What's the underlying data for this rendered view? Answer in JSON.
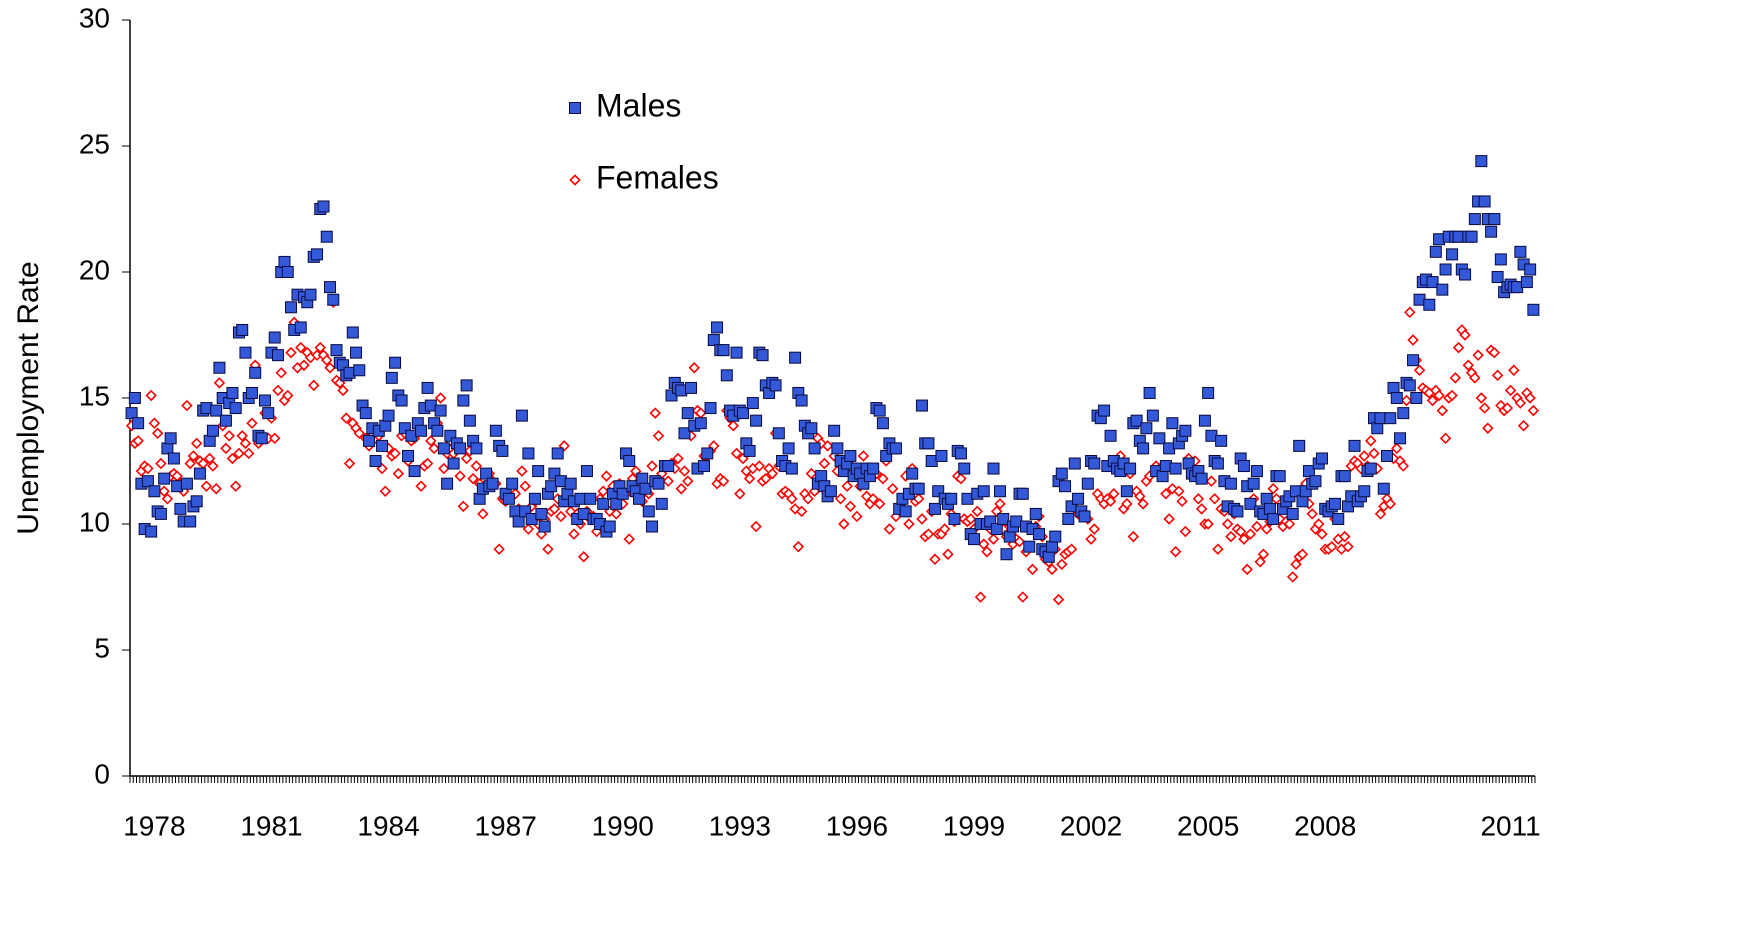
{
  "chart_data": {
    "type": "scatter",
    "y_label": "Unemployment Rate",
    "ylim": [
      0,
      30
    ],
    "yticks": [
      0,
      5,
      10,
      15,
      20,
      25,
      30
    ],
    "categories": [
      null,
      null,
      null,
      null,
      null,
      null,
      null,
      "1978",
      null,
      null,
      null,
      null,
      null,
      null,
      null,
      null,
      null,
      null,
      null,
      null,
      null,
      null,
      null,
      null,
      null,
      null,
      null,
      null,
      null,
      null,
      null,
      null,
      null,
      null,
      null,
      null,
      null,
      null,
      null,
      null,
      null,
      null,
      null,
      "1981",
      null,
      null,
      null,
      null,
      null,
      null,
      null,
      null,
      null,
      null,
      null,
      null,
      null,
      null,
      null,
      null,
      null,
      null,
      null,
      null,
      null,
      null,
      null,
      null,
      null,
      null,
      null,
      null,
      null,
      null,
      null,
      null,
      null,
      null,
      null,
      "1984",
      null,
      null,
      null,
      null,
      null,
      null,
      null,
      null,
      null,
      null,
      null,
      null,
      null,
      null,
      null,
      null,
      null,
      null,
      null,
      null,
      null,
      null,
      null,
      null,
      null,
      null,
      null,
      null,
      null,
      null,
      null,
      null,
      null,
      null,
      null,
      "1987",
      null,
      null,
      null,
      null,
      null,
      null,
      null,
      null,
      null,
      null,
      null,
      null,
      null,
      null,
      null,
      null,
      null,
      null,
      null,
      null,
      null,
      null,
      null,
      null,
      null,
      null,
      null,
      null,
      null,
      null,
      null,
      null,
      null,
      null,
      null,
      "1990",
      null,
      null,
      null,
      null,
      null,
      null,
      null,
      null,
      null,
      null,
      null,
      null,
      null,
      null,
      null,
      null,
      null,
      null,
      null,
      null,
      null,
      null,
      null,
      null,
      null,
      null,
      null,
      null,
      null,
      null,
      null,
      null,
      null,
      null,
      null,
      "1993",
      null,
      null,
      null,
      null,
      null,
      null,
      null,
      null,
      null,
      null,
      null,
      null,
      null,
      null,
      null,
      null,
      null,
      null,
      null,
      null,
      null,
      null,
      null,
      null,
      null,
      null,
      null,
      null,
      null,
      null,
      null,
      null,
      null,
      null,
      null,
      "1996",
      null,
      null,
      null,
      null,
      null,
      null,
      null,
      null,
      null,
      null,
      null,
      null,
      null,
      null,
      null,
      null,
      null,
      null,
      null,
      null,
      null,
      null,
      null,
      null,
      null,
      null,
      null,
      null,
      null,
      null,
      null,
      null,
      null,
      null,
      null,
      "1999",
      null,
      null,
      null,
      null,
      null,
      null,
      null,
      null,
      null,
      null,
      null,
      null,
      null,
      null,
      null,
      null,
      null,
      null,
      null,
      null,
      null,
      null,
      null,
      null,
      null,
      null,
      null,
      null,
      null,
      null,
      null,
      null,
      null,
      null,
      null,
      "2002",
      null,
      null,
      null,
      null,
      null,
      null,
      null,
      null,
      null,
      null,
      null,
      null,
      null,
      null,
      null,
      null,
      null,
      null,
      null,
      null,
      null,
      null,
      null,
      null,
      null,
      null,
      null,
      null,
      null,
      null,
      null,
      null,
      null,
      null,
      null,
      "2005",
      null,
      null,
      null,
      null,
      null,
      null,
      null,
      null,
      null,
      null,
      null,
      null,
      null,
      null,
      null,
      null,
      null,
      null,
      null,
      null,
      null,
      null,
      null,
      null,
      null,
      null,
      null,
      null,
      null,
      null,
      null,
      null,
      null,
      null,
      null,
      "2008",
      null,
      null,
      null,
      null,
      null,
      null,
      null,
      null,
      null,
      null,
      null,
      null,
      null,
      null,
      null,
      null,
      null,
      null,
      null,
      null,
      null,
      null,
      null,
      null,
      null,
      null,
      null,
      null,
      null,
      null,
      null,
      null,
      null,
      null,
      null,
      null,
      null,
      null,
      null,
      null,
      null,
      null,
      null,
      null,
      null,
      null,
      null,
      null,
      null,
      null,
      null,
      null,
      null,
      null,
      null,
      null,
      "2011",
      null,
      null,
      null,
      null,
      null,
      null,
      null
    ],
    "series": [
      {
        "name": "Males",
        "color": "#3359d9",
        "marker": "square",
        "values": [
          14.4,
          15.0,
          14.0,
          11.6,
          9.8,
          11.7,
          9.7,
          11.3,
          10.5,
          10.4,
          11.8,
          13.0,
          13.4,
          12.6,
          11.5,
          10.6,
          10.1,
          11.6,
          10.1,
          10.7,
          10.9,
          12.0,
          14.5,
          14.6,
          13.3,
          13.7,
          14.5,
          16.2,
          15.0,
          14.1,
          14.8,
          15.2,
          14.6,
          17.6,
          17.7,
          16.8,
          15.0,
          15.2,
          16.0,
          13.5,
          13.4,
          14.9,
          14.4,
          16.8,
          17.4,
          16.7,
          20.0,
          20.4,
          20.0,
          18.6,
          17.7,
          19.1,
          17.8,
          19.0,
          18.8,
          19.1,
          20.6,
          20.7,
          22.5,
          22.6,
          21.4,
          19.4,
          18.9,
          16.9,
          16.4,
          16.3,
          15.9,
          16.0,
          17.6,
          16.8,
          16.1,
          14.7,
          14.4,
          13.3,
          13.8,
          12.5,
          13.7,
          13.1,
          13.9,
          14.3,
          15.8,
          16.4,
          15.1,
          14.9,
          13.8,
          12.7,
          13.5,
          12.1,
          14.0,
          13.7,
          14.6,
          15.4,
          14.7,
          14.0,
          13.7,
          14.5,
          13.0,
          11.6,
          13.5,
          12.4,
          13.2,
          13.0,
          14.9,
          15.5,
          14.1,
          13.3,
          13.0,
          11.0,
          11.4,
          12.0,
          11.5,
          11.6,
          13.7,
          13.1,
          12.9,
          11.2,
          11.0,
          11.6,
          10.5,
          10.1,
          14.3,
          10.5,
          12.8,
          10.2,
          11.0,
          12.1,
          10.4,
          9.9,
          11.2,
          11.5,
          12.0,
          12.8,
          11.7,
          10.9,
          11.2,
          11.6,
          10.9,
          10.2,
          11.0,
          10.4,
          12.1,
          11.0,
          10.2,
          10.2,
          10.0,
          10.8,
          9.7,
          9.9,
          11.2,
          10.8,
          11.5,
          11.2,
          12.8,
          12.5,
          11.5,
          11.3,
          11.0,
          11.8,
          11.4,
          10.5,
          9.9,
          11.7,
          11.6,
          10.8,
          12.3,
          12.3,
          15.1,
          15.6,
          15.4,
          15.3,
          13.6,
          14.4,
          15.4,
          13.9,
          12.2,
          14.0,
          12.3,
          12.8,
          14.6,
          17.3,
          17.8,
          16.9,
          16.9,
          15.9,
          14.5,
          14.3,
          16.8,
          14.5,
          14.4,
          13.2,
          12.9,
          14.8,
          14.1,
          16.8,
          16.7,
          15.5,
          15.2,
          15.6,
          15.5,
          13.6,
          12.5,
          12.3,
          13.0,
          12.2,
          16.6,
          15.2,
          14.9,
          13.9,
          13.6,
          13.8,
          13.0,
          11.6,
          11.9,
          11.5,
          11.1,
          11.3,
          13.7,
          13.0,
          12.5,
          12.1,
          12.4,
          12.7,
          11.9,
          12.2,
          12.0,
          11.6,
          12.2,
          11.9,
          12.2,
          14.6,
          14.5,
          14.0,
          12.7,
          13.2,
          13.0,
          13.0,
          10.6,
          11.0,
          10.5,
          11.2,
          12.0,
          11.4,
          11.4,
          14.7,
          13.2,
          13.2,
          12.5,
          10.6,
          11.3,
          12.7,
          11.0,
          10.8,
          11.0,
          10.2,
          12.9,
          12.8,
          12.2,
          11.0,
          9.6,
          9.4,
          11.2,
          10.0,
          11.3,
          10.0,
          10.1,
          12.2,
          9.8,
          11.3,
          10.2,
          8.8,
          9.5,
          9.9,
          10.1,
          11.2,
          11.2,
          9.9,
          9.1,
          9.8,
          10.4,
          9.6,
          9.0,
          8.9,
          8.7,
          9.1,
          9.5,
          11.7,
          12.0,
          11.5,
          10.2,
          10.7,
          12.4,
          11.0,
          10.5,
          10.3,
          11.6,
          12.5,
          12.4,
          14.3,
          14.2,
          14.5,
          12.3,
          13.5,
          12.5,
          12.2,
          12.1,
          12.4,
          11.3,
          12.2,
          14.0,
          14.1,
          13.3,
          13.0,
          13.8,
          15.2,
          14.3,
          12.1,
          13.4,
          11.9,
          12.3,
          13.0,
          14.0,
          12.2,
          13.2,
          13.5,
          13.7,
          12.4,
          12.0,
          11.9,
          12.1,
          11.8,
          14.1,
          15.2,
          13.5,
          12.5,
          12.4,
          13.3,
          11.7,
          10.7,
          11.6,
          10.6,
          10.5,
          12.6,
          12.3,
          11.5,
          10.8,
          11.6,
          12.1,
          10.5,
          10.4,
          11.0,
          10.6,
          10.2,
          11.9,
          11.9,
          10.6,
          10.9,
          11.1,
          10.4,
          11.3,
          13.1,
          10.9,
          11.3,
          12.1,
          11.6,
          11.7,
          12.4,
          12.6,
          10.6,
          10.5,
          10.7,
          10.8,
          10.2,
          11.9,
          11.9,
          10.7,
          11.1,
          13.1,
          10.9,
          11.1,
          11.3,
          12.1,
          12.2,
          14.2,
          13.8,
          14.2,
          11.4,
          12.7,
          14.2,
          15.4,
          15.0,
          13.4,
          14.4,
          15.6,
          15.5,
          16.5,
          15.0,
          18.9,
          19.6,
          19.7,
          18.7,
          19.6,
          20.8,
          21.3,
          19.3,
          20.1,
          21.4,
          20.7,
          21.4,
          21.4,
          20.1,
          19.9,
          21.4,
          21.4,
          22.1,
          22.8,
          24.4,
          22.8,
          22.1,
          21.6,
          22.1,
          19.8,
          20.5,
          19.2,
          19.4,
          19.5,
          19.4,
          19.4,
          20.8,
          20.3,
          19.6,
          20.1,
          18.5
        ]
      },
      {
        "name": "Females",
        "color": "#ff0000",
        "marker": "diamond",
        "values": [
          13.9,
          13.2,
          13.3,
          12.1,
          12.3,
          12.2,
          15.1,
          14.0,
          13.6,
          12.4,
          11.3,
          11.0,
          11.9,
          12.0,
          11.9,
          11.6,
          11.3,
          14.7,
          12.4,
          12.7,
          13.2,
          12.5,
          12.4,
          11.5,
          12.6,
          12.3,
          11.4,
          15.6,
          13.9,
          13.0,
          13.5,
          12.6,
          11.5,
          12.8,
          13.5,
          13.2,
          12.8,
          14.0,
          16.3,
          13.2,
          13.5,
          14.4,
          13.4,
          14.2,
          13.4,
          15.3,
          16.0,
          14.9,
          15.1,
          16.8,
          18.0,
          16.2,
          17.0,
          16.3,
          16.8,
          16.6,
          15.5,
          16.7,
          17.0,
          16.7,
          16.5,
          16.2,
          18.8,
          15.7,
          15.6,
          15.3,
          14.2,
          12.4,
          14.0,
          13.8,
          13.6,
          14.7,
          13.4,
          13.1,
          13.6,
          13.4,
          13.5,
          12.2,
          11.3,
          13.0,
          12.7,
          12.8,
          12.0,
          13.5,
          13.6,
          12.5,
          13.3,
          13.4,
          13.9,
          11.5,
          12.3,
          12.4,
          13.3,
          13.0,
          14.0,
          15.0,
          12.2,
          12.8,
          13.3,
          12.8,
          13.1,
          11.9,
          10.7,
          12.6,
          12.9,
          11.8,
          12.3,
          11.6,
          10.4,
          11.4,
          12.0,
          11.7,
          11.6,
          9.0,
          11.0,
          10.9,
          11.0,
          11.3,
          11.2,
          10.6,
          12.1,
          11.5,
          9.8,
          10.7,
          10.9,
          10.0,
          9.6,
          10.2,
          9.0,
          10.5,
          10.6,
          11.0,
          10.3,
          13.1,
          11.1,
          10.5,
          9.6,
          10.4,
          10.0,
          8.7,
          10.5,
          10.2,
          10.3,
          9.7,
          11.0,
          11.3,
          11.9,
          10.5,
          11.5,
          10.4,
          11.6,
          10.8,
          11.2,
          9.4,
          11.8,
          12.1,
          11.0,
          10.9,
          11.3,
          11.2,
          12.3,
          14.4,
          13.5,
          12.0,
          12.3,
          11.7,
          12.4,
          12.2,
          12.6,
          11.4,
          12.1,
          11.7,
          13.5,
          16.2,
          14.5,
          14.4,
          12.7,
          12.7,
          12.9,
          13.1,
          11.6,
          11.8,
          11.7,
          14.5,
          14.2,
          13.9,
          12.8,
          11.2,
          12.6,
          12.1,
          11.8,
          12.2,
          9.9,
          12.3,
          11.7,
          11.8,
          12.2,
          12.0,
          13.6,
          12.3,
          11.2,
          11.3,
          11.2,
          11.0,
          10.6,
          9.1,
          10.5,
          11.2,
          11.0,
          12.0,
          11.3,
          13.4,
          13.2,
          12.4,
          13.1,
          11.2,
          12.7,
          12.1,
          11.0,
          10.0,
          11.5,
          10.7,
          12.0,
          10.3,
          11.5,
          12.7,
          11.1,
          10.8,
          11.0,
          12.0,
          10.8,
          11.8,
          12.5,
          9.8,
          11.4,
          10.3,
          10.7,
          11.0,
          11.9,
          10.0,
          12.2,
          10.9,
          11.0,
          10.2,
          9.5,
          9.6,
          10.5,
          8.6,
          9.6,
          9.6,
          9.8,
          8.8,
          10.4,
          10.1,
          11.9,
          11.8,
          10.2,
          10.1,
          10.2,
          9.8,
          10.5,
          7.1,
          9.2,
          8.9,
          9.8,
          9.4,
          10.5,
          10.8,
          9.8,
          9.5,
          9.9,
          9.2,
          9.4,
          9.3,
          7.1,
          8.9,
          9.8,
          8.2,
          9.9,
          10.3,
          9.5,
          8.6,
          8.5,
          8.2,
          9.0,
          7.0,
          8.4,
          8.8,
          8.9,
          9.0,
          10.6,
          10.4,
          10.4,
          10.3,
          10.2,
          9.4,
          9.8,
          11.2,
          11.0,
          10.8,
          11.0,
          10.9,
          11.2,
          12.1,
          12.7,
          10.6,
          10.8,
          12.0,
          9.5,
          11.3,
          11.1,
          10.8,
          11.7,
          11.9,
          14.3,
          12.3,
          12.2,
          11.9,
          11.2,
          10.2,
          11.4,
          8.9,
          11.3,
          10.9,
          9.7,
          12.6,
          12.0,
          12.5,
          11.0,
          10.6,
          10.0,
          10.0,
          11.7,
          11.0,
          9.0,
          10.6,
          10.5,
          10.0,
          9.5,
          10.4,
          9.8,
          9.7,
          9.4,
          8.2,
          9.6,
          11.0,
          9.9,
          8.5,
          8.8,
          9.8,
          10.1,
          11.4,
          11.0,
          10.2,
          9.9,
          10.1,
          10.0,
          7.9,
          8.4,
          8.7,
          8.8,
          11.6,
          10.8,
          10.4,
          9.8,
          10.0,
          9.6,
          9.0,
          9.0,
          9.1,
          10.2,
          9.4,
          9.0,
          9.5,
          9.1,
          12.3,
          12.5,
          12.4,
          12.2,
          12.7,
          12.3,
          13.3,
          12.8,
          12.2,
          10.4,
          10.7,
          11.0,
          10.8,
          12.6,
          13.0,
          12.5,
          12.3,
          14.9,
          18.4,
          17.3,
          16.5,
          16.1,
          15.4,
          15.3,
          15.2,
          14.9,
          15.3,
          15.1,
          14.5,
          13.4,
          15.0,
          15.1,
          15.8,
          17.0,
          17.7,
          17.5,
          16.3,
          16.0,
          15.8,
          16.7,
          15.0,
          14.6,
          13.8,
          16.9,
          16.8,
          15.9,
          14.7,
          14.5,
          14.6,
          15.3,
          16.1,
          15.0,
          14.8,
          13.9,
          15.2,
          15.0,
          14.5
        ]
      }
    ]
  }
}
